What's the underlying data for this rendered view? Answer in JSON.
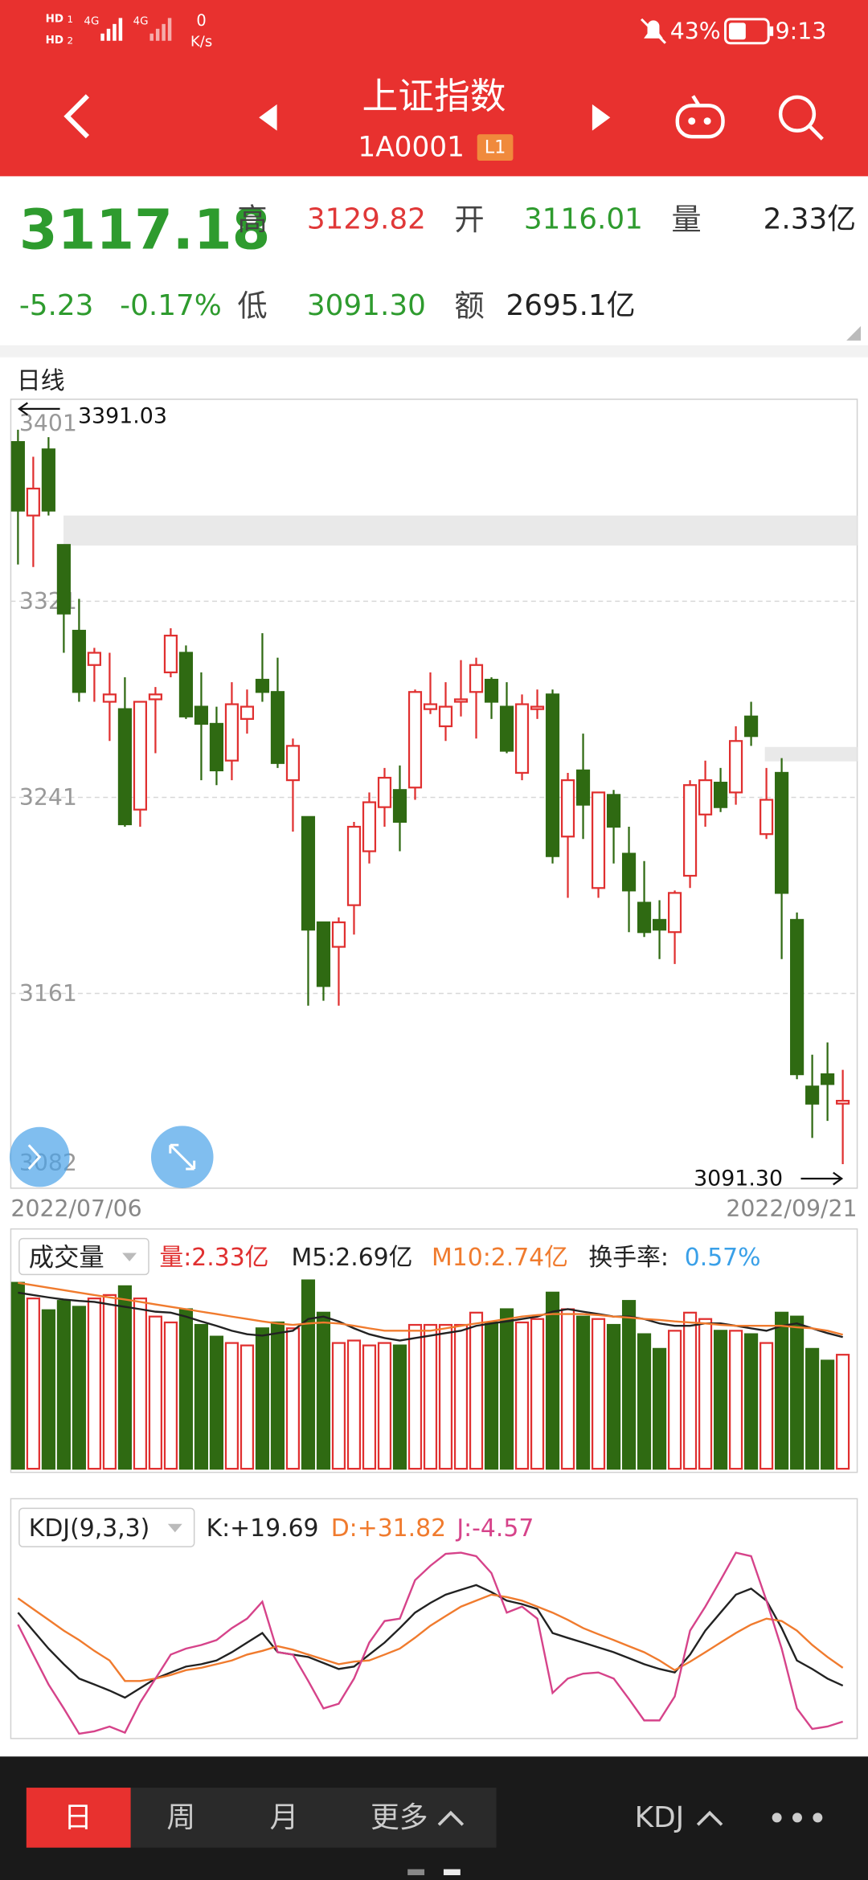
{
  "status_bar": {
    "sims": [
      {
        "hd": "HD",
        "n": "1",
        "net": "4G"
      },
      {
        "hd": "HD",
        "n": "2",
        "net": "4G"
      }
    ],
    "speed": "0",
    "speed_unit": "K/s",
    "battery": "43%",
    "time": "9:13"
  },
  "header": {
    "title": "上证指数",
    "code": "1A0001",
    "badge": "L1"
  },
  "quote": {
    "price": "3117.18",
    "change": "-5.23",
    "change_pct": "-0.17%",
    "high_label": "高",
    "high": "3129.82",
    "open_label": "开",
    "open": "3116.01",
    "volume_label": "量",
    "volume": "2.33亿",
    "low_label": "低",
    "low": "3091.30",
    "amount_label": "额",
    "amount": "2695.1亿"
  },
  "kline": {
    "period": "日线",
    "high_marker": "3391.03",
    "low_marker": "3091.30",
    "start_date": "2022/07/06",
    "end_date": "2022/09/21",
    "ylim": [
      3082,
      3401
    ],
    "yticks": [
      3401,
      3321,
      3241,
      3161,
      3082
    ],
    "up_color": "#e03030",
    "down_color": "#2f6a12",
    "ohlc": [
      [
        3386,
        3391.03,
        3336,
        3358
      ],
      [
        3356,
        3380,
        3335,
        3367
      ],
      [
        3383,
        3388,
        3356,
        3358
      ],
      [
        3344,
        3344,
        3300,
        3316
      ],
      [
        3309,
        3322,
        3280,
        3284
      ],
      [
        3295,
        3302,
        3280,
        3300
      ],
      [
        3280,
        3300,
        3264,
        3283
      ],
      [
        3277,
        3290,
        3229,
        3230
      ],
      [
        3236,
        3280,
        3229,
        3280
      ],
      [
        3281,
        3286,
        3259,
        3283
      ],
      [
        3292,
        3310,
        3290,
        3307
      ],
      [
        3300,
        3303,
        3273,
        3274
      ],
      [
        3278,
        3292,
        3248,
        3271
      ],
      [
        3271,
        3278,
        3246,
        3252
      ],
      [
        3256,
        3288,
        3248,
        3279
      ],
      [
        3273,
        3285,
        3267,
        3278
      ],
      [
        3289,
        3308,
        3280,
        3284
      ],
      [
        3284,
        3298,
        3253,
        3255
      ],
      [
        3248,
        3265,
        3227,
        3262
      ],
      [
        3233,
        3233,
        3156,
        3187
      ],
      [
        3190,
        3190,
        3158,
        3164
      ],
      [
        3180,
        3192,
        3156,
        3190
      ],
      [
        3197,
        3231,
        3185,
        3229
      ],
      [
        3219,
        3243,
        3214,
        3239
      ],
      [
        3237,
        3253,
        3229,
        3249
      ],
      [
        3244,
        3254,
        3219,
        3231
      ],
      [
        3245,
        3285,
        3240,
        3284
      ],
      [
        3277,
        3292,
        3275,
        3279
      ],
      [
        3270,
        3288,
        3264,
        3278
      ],
      [
        3280,
        3297,
        3274,
        3281
      ],
      [
        3284,
        3298,
        3265,
        3295
      ],
      [
        3289,
        3290,
        3273,
        3280
      ],
      [
        3278,
        3288,
        3259,
        3260
      ],
      [
        3251,
        3283,
        3248,
        3279
      ],
      [
        3277,
        3285,
        3273,
        3278
      ],
      [
        3283,
        3285,
        3214,
        3217
      ],
      [
        3225,
        3251,
        3200,
        3248
      ],
      [
        3252,
        3267,
        3224,
        3238
      ],
      [
        3204,
        3243,
        3200,
        3243
      ],
      [
        3242,
        3244,
        3214,
        3229
      ],
      [
        3218,
        3229,
        3186,
        3203
      ],
      [
        3198,
        3215,
        3184,
        3186
      ],
      [
        3191,
        3199,
        3175,
        3187
      ],
      [
        3186,
        3203,
        3173,
        3202
      ],
      [
        3209,
        3248,
        3204,
        3246
      ],
      [
        3234,
        3256,
        3229,
        3248
      ],
      [
        3247,
        3253,
        3235,
        3237
      ],
      [
        3243,
        3270,
        3238,
        3264
      ],
      [
        3274,
        3280,
        3262,
        3266
      ],
      [
        3226,
        3253,
        3224,
        3240
      ],
      [
        3251,
        3257,
        3175,
        3202
      ],
      [
        3191,
        3194,
        3126,
        3128
      ],
      [
        3123,
        3136,
        3102,
        3116
      ],
      [
        3128,
        3141,
        3109,
        3124
      ],
      [
        3116.01,
        3129.82,
        3091.3,
        3117.18
      ]
    ]
  },
  "volume": {
    "label": "成交量",
    "legend": [
      {
        "text": "量:2.33亿",
        "color": "#e03030"
      },
      {
        "text": "M5:2.69亿",
        "color": "#222222"
      },
      {
        "text": "M10:2.74亿",
        "color": "#f07b2e"
      },
      {
        "text": "换手率:",
        "color": "#222222"
      },
      {
        "text": "0.57%",
        "color": "#3aa0e8"
      }
    ],
    "ylim": [
      0,
      3.92
    ],
    "values": [
      3.8,
      3.48,
      3.24,
      3.43,
      3.31,
      3.48,
      3.55,
      3.73,
      3.48,
      3.11,
      2.99,
      3.26,
      2.94,
      2.7,
      2.57,
      2.52,
      2.87,
      2.99,
      2.87,
      3.85,
      3.19,
      2.57,
      2.62,
      2.52,
      2.57,
      2.52,
      2.94,
      2.94,
      2.94,
      2.94,
      3.19,
      2.99,
      3.26,
      2.99,
      3.06,
      3.6,
      3.26,
      3.11,
      3.06,
      2.94,
      3.43,
      2.75,
      2.45,
      2.82,
      3.19,
      3.06,
      2.82,
      2.82,
      2.75,
      2.57,
      3.19,
      3.11,
      2.45,
      2.21,
      2.33
    ],
    "lines": [
      {
        "color": "#222222",
        "values": [
          3.6,
          3.55,
          3.5,
          3.46,
          3.43,
          3.41,
          3.36,
          3.31,
          3.26,
          3.21,
          3.19,
          3.11,
          3.01,
          2.92,
          2.82,
          2.75,
          2.72,
          2.77,
          2.82,
          3.06,
          3.11,
          3.01,
          2.87,
          2.75,
          2.67,
          2.62,
          2.67,
          2.72,
          2.77,
          2.82,
          2.92,
          2.97,
          3.01,
          3.06,
          3.11,
          3.21,
          3.26,
          3.21,
          3.16,
          3.11,
          3.11,
          3.06,
          2.97,
          2.92,
          2.92,
          2.97,
          2.97,
          2.92,
          2.87,
          2.82,
          2.92,
          2.97,
          2.87,
          2.77,
          2.69
        ]
      },
      {
        "color": "#f07b2e",
        "values": [
          3.8,
          3.75,
          3.7,
          3.65,
          3.6,
          3.55,
          3.5,
          3.46,
          3.41,
          3.36,
          3.31,
          3.26,
          3.21,
          3.16,
          3.11,
          3.06,
          3.01,
          2.97,
          2.94,
          2.97,
          2.99,
          2.97,
          2.92,
          2.87,
          2.82,
          2.82,
          2.82,
          2.82,
          2.87,
          2.92,
          2.97,
          3.01,
          3.06,
          3.11,
          3.14,
          3.16,
          3.16,
          3.16,
          3.14,
          3.11,
          3.09,
          3.06,
          3.04,
          3.01,
          2.99,
          2.97,
          2.94,
          2.92,
          2.92,
          2.92,
          2.92,
          2.89,
          2.87,
          2.82,
          2.74
        ]
      }
    ]
  },
  "kdj": {
    "label": "KDJ(9,3,3)",
    "ylim": [
      -16,
      112
    ],
    "series": [
      {
        "name": "K:+19.69",
        "color": "#222222",
        "values": [
          69.1,
          56.9,
          44.8,
          34.2,
          24.5,
          20.5,
          16.4,
          11.6,
          18.0,
          24.5,
          28.6,
          32.6,
          34.2,
          36.7,
          42.3,
          48.8,
          55.3,
          42.3,
          40.7,
          39.1,
          35.0,
          31.0,
          32.6,
          40.7,
          48.8,
          58.6,
          69.1,
          75.6,
          81.2,
          84.5,
          87.7,
          82.9,
          77.2,
          74.8,
          71.5,
          55.3,
          52.0,
          48.8,
          45.6,
          42.3,
          38.3,
          34.2,
          31.0,
          28.6,
          40.7,
          56.9,
          69.1,
          81.2,
          85.3,
          77.2,
          58.6,
          36.7,
          31.0,
          24.5,
          19.69
        ]
      },
      {
        "name": "D:+31.82",
        "color": "#f07b2e",
        "values": [
          78.8,
          71.5,
          64.2,
          56.9,
          50.5,
          43.2,
          36.7,
          22.9,
          22.9,
          24.5,
          26.9,
          30.2,
          31.8,
          34.2,
          36.7,
          40.7,
          43.2,
          46.4,
          44.0,
          40.7,
          37.5,
          34.2,
          35.9,
          36.7,
          40.7,
          44.8,
          52.1,
          60.2,
          66.7,
          73.1,
          77.2,
          81.2,
          79.6,
          77.2,
          73.1,
          69.1,
          64.2,
          58.6,
          54.5,
          50.5,
          46.4,
          42.3,
          36.7,
          30.2,
          35.9,
          42.3,
          48.8,
          55.3,
          61.0,
          65.0,
          63.4,
          56.9,
          47.2,
          39.1,
          31.82
        ]
      },
      {
        "name": "J:-4.57",
        "color": "#d6438a",
        "values": [
          61.0,
          40.7,
          20.5,
          4.3,
          -12.8,
          -11.1,
          -7.9,
          -12.0,
          8.3,
          24.5,
          40.7,
          44.8,
          47.2,
          50.5,
          58.6,
          65.0,
          76.4,
          42.3,
          40.7,
          22.9,
          4.3,
          7.5,
          24.5,
          48.8,
          63.4,
          65.0,
          91.0,
          100.7,
          108.8,
          109.6,
          107.2,
          95.8,
          69.1,
          73.1,
          65.0,
          14.8,
          24.5,
          27.8,
          28.6,
          24.5,
          10.7,
          -3.8,
          -3.8,
          12.4,
          56.9,
          73.1,
          91.0,
          109.6,
          107.2,
          77.2,
          44.8,
          4.3,
          -9.5,
          -7.9,
          -4.57
        ]
      }
    ]
  },
  "tabs": {
    "items": [
      "日",
      "周",
      "月",
      "更多"
    ],
    "selected": 0,
    "indicator": "KDJ"
  }
}
